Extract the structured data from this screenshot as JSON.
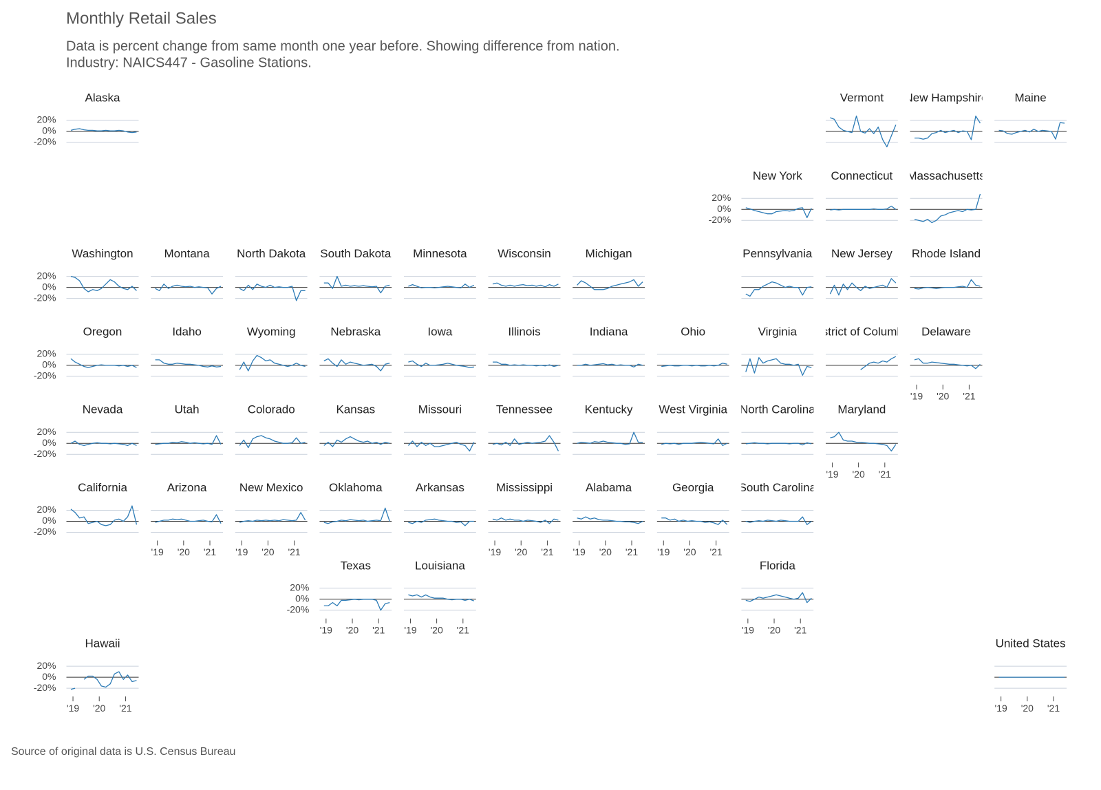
{
  "chart_data": {
    "type": "line",
    "title": "Monthly Retail Sales",
    "subtitle": [
      "Data is percent change from same month one year before. Showing difference from nation.",
      "Industry: NAICS447 - Gasoline Stations."
    ],
    "caption": "Source of original data is U.S. Census Bureau",
    "color": "#2c7bb6",
    "x": [
      2018.92,
      2019.08,
      2019.25,
      2019.42,
      2019.58,
      2019.75,
      2019.92,
      2020.08,
      2020.25,
      2020.42,
      2020.58,
      2020.75,
      2020.92,
      2021.08,
      2021.25,
      2021.42
    ],
    "xlim": [
      2018.75,
      2021.5
    ],
    "xticks": [
      {
        "value": 2019,
        "label": "'19"
      },
      {
        "value": 2020,
        "label": "'20"
      },
      {
        "value": 2021,
        "label": "'21"
      }
    ],
    "ylim": [
      -30,
      30
    ],
    "yticks": [
      {
        "value": 20,
        "label": "20%"
      },
      {
        "value": 0,
        "label": "0%"
      },
      {
        "value": -20,
        "label": "-20%"
      }
    ],
    "series": [
      {
        "name": "Alaska",
        "values": [
          2,
          4,
          5,
          3,
          2,
          2,
          1,
          1,
          2,
          1,
          1,
          2,
          1,
          -1,
          -2,
          -1
        ]
      },
      {
        "name": "Vermont",
        "values": [
          25,
          22,
          8,
          2,
          0,
          -2,
          28,
          0,
          -3,
          5,
          -4,
          8,
          -15,
          -28,
          -8,
          12
        ]
      },
      {
        "name": "New Hampshire",
        "values": [
          -12,
          -12,
          -14,
          -12,
          -4,
          -2,
          2,
          -2,
          0,
          2,
          -2,
          1,
          0,
          -15,
          28,
          15
        ]
      },
      {
        "name": "Maine",
        "values": [
          2,
          1,
          -4,
          -5,
          -2,
          0,
          2,
          -1,
          4,
          0,
          2,
          1,
          0,
          -14,
          16,
          15
        ]
      },
      {
        "name": "New York",
        "values": [
          3,
          1,
          -2,
          -4,
          -6,
          -8,
          -8,
          -4,
          -3,
          -2,
          -3,
          -2,
          2,
          3,
          -15,
          2
        ]
      },
      {
        "name": "Connecticut",
        "values": [
          -1,
          0,
          -1,
          0,
          0,
          0,
          0,
          0,
          0,
          0,
          1,
          0,
          0,
          1,
          6,
          0
        ]
      },
      {
        "name": "Massachusetts",
        "values": [
          -18,
          -20,
          -22,
          -18,
          -24,
          -20,
          -12,
          -10,
          -6,
          -4,
          -2,
          -4,
          0,
          -1,
          0,
          28
        ]
      },
      {
        "name": "Washington",
        "values": [
          20,
          18,
          12,
          -2,
          -8,
          -4,
          -6,
          -2,
          6,
          14,
          10,
          2,
          -2,
          -4,
          2,
          -6
        ]
      },
      {
        "name": "Montana",
        "values": [
          -2,
          -6,
          6,
          -2,
          2,
          4,
          2,
          1,
          2,
          0,
          1,
          0,
          -1,
          -12,
          -2,
          2
        ]
      },
      {
        "name": "North Dakota",
        "values": [
          -2,
          -6,
          4,
          -4,
          6,
          2,
          0,
          4,
          0,
          1,
          0,
          0,
          2,
          -24,
          -6,
          -6
        ]
      },
      {
        "name": "South Dakota",
        "values": [
          8,
          8,
          -2,
          20,
          2,
          4,
          2,
          3,
          2,
          3,
          2,
          1,
          2,
          -10,
          2,
          4
        ]
      },
      {
        "name": "Minnesota",
        "values": [
          2,
          5,
          2,
          -1,
          0,
          0,
          -1,
          0,
          1,
          2,
          1,
          0,
          -1,
          6,
          0,
          4
        ]
      },
      {
        "name": "Wisconsin",
        "values": [
          6,
          8,
          4,
          2,
          4,
          2,
          4,
          5,
          3,
          4,
          2,
          4,
          1,
          5,
          2,
          6
        ]
      },
      {
        "name": "Michigan",
        "values": [
          4,
          12,
          8,
          2,
          -4,
          -4,
          -4,
          -2,
          2,
          4,
          6,
          8,
          10,
          14,
          2,
          10
        ]
      },
      {
        "name": "Pennsylvania",
        "values": [
          -12,
          -16,
          -4,
          -4,
          2,
          6,
          10,
          8,
          4,
          0,
          2,
          0,
          0,
          -14,
          0,
          1
        ]
      },
      {
        "name": "New Jersey",
        "values": [
          -12,
          4,
          -14,
          6,
          -4,
          8,
          0,
          -6,
          2,
          -2,
          0,
          2,
          4,
          0,
          16,
          8
        ]
      },
      {
        "name": "Rhode Island",
        "values": [
          -2,
          -3,
          -1,
          0,
          -1,
          -2,
          -1,
          0,
          0,
          0,
          1,
          2,
          0,
          14,
          4,
          2
        ]
      },
      {
        "name": "Oregon",
        "values": [
          12,
          6,
          2,
          -2,
          -4,
          -2,
          0,
          1,
          0,
          0,
          0,
          -1,
          0,
          -2,
          0,
          -4
        ]
      },
      {
        "name": "Idaho",
        "values": [
          10,
          10,
          4,
          2,
          2,
          4,
          3,
          2,
          2,
          1,
          0,
          -2,
          -3,
          -1,
          -3,
          -2
        ]
      },
      {
        "name": "Wyoming",
        "values": [
          -8,
          6,
          -10,
          8,
          18,
          14,
          8,
          10,
          4,
          2,
          0,
          -2,
          0,
          4,
          0,
          -2
        ]
      },
      {
        "name": "Nebraska",
        "values": [
          8,
          12,
          4,
          -2,
          10,
          2,
          6,
          4,
          2,
          0,
          1,
          2,
          -2,
          -10,
          2,
          4
        ]
      },
      {
        "name": "Iowa",
        "values": [
          6,
          8,
          2,
          -2,
          4,
          0,
          0,
          1,
          2,
          4,
          2,
          0,
          -1,
          -2,
          -4,
          -3
        ]
      },
      {
        "name": "Illinois",
        "values": [
          6,
          6,
          2,
          2,
          0,
          1,
          0,
          1,
          0,
          0,
          -1,
          0,
          -1,
          1,
          -2,
          0
        ]
      },
      {
        "name": "Indiana",
        "values": [
          0,
          0,
          2,
          0,
          1,
          2,
          3,
          1,
          2,
          0,
          1,
          0,
          0,
          -3,
          2,
          0
        ]
      },
      {
        "name": "Ohio",
        "values": [
          -2,
          -1,
          0,
          -1,
          -1,
          0,
          0,
          -1,
          0,
          -1,
          -1,
          0,
          -1,
          0,
          4,
          2
        ]
      },
      {
        "name": "Virginia",
        "values": [
          -12,
          12,
          -14,
          14,
          4,
          8,
          10,
          12,
          4,
          2,
          2,
          0,
          2,
          -18,
          -2,
          -4
        ]
      },
      {
        "name": "District of Columbia",
        "values": [
          null,
          null,
          null,
          null,
          null,
          null,
          null,
          -8,
          -2,
          4,
          6,
          4,
          8,
          6,
          12,
          16
        ]
      },
      {
        "name": "Delaware",
        "values": [
          10,
          12,
          4,
          4,
          6,
          5,
          4,
          3,
          2,
          2,
          1,
          0,
          -1,
          0,
          -6,
          2
        ]
      },
      {
        "name": "Nevada",
        "values": [
          0,
          4,
          -2,
          -4,
          -2,
          0,
          1,
          0,
          0,
          -1,
          0,
          -1,
          -2,
          -4,
          0,
          -4
        ]
      },
      {
        "name": "Utah",
        "values": [
          -2,
          -1,
          0,
          0,
          2,
          1,
          3,
          2,
          0,
          1,
          0,
          -1,
          0,
          -2,
          14,
          -2
        ]
      },
      {
        "name": "Colorado",
        "values": [
          -4,
          6,
          -8,
          8,
          12,
          14,
          10,
          8,
          4,
          2,
          0,
          0,
          1,
          10,
          0,
          2
        ]
      },
      {
        "name": "Kansas",
        "values": [
          -4,
          2,
          -6,
          6,
          2,
          8,
          12,
          8,
          4,
          2,
          4,
          0,
          2,
          -2,
          2,
          0
        ]
      },
      {
        "name": "Missouri",
        "values": [
          -4,
          4,
          -6,
          2,
          -4,
          0,
          -6,
          -6,
          -4,
          -2,
          0,
          2,
          -2,
          -4,
          -14,
          2
        ]
      },
      {
        "name": "Tennessee",
        "values": [
          -2,
          0,
          -3,
          2,
          -4,
          8,
          -2,
          0,
          2,
          0,
          1,
          2,
          4,
          14,
          2,
          -14
        ]
      },
      {
        "name": "Kentucky",
        "values": [
          0,
          2,
          1,
          0,
          3,
          2,
          4,
          2,
          1,
          0,
          0,
          -2,
          -1,
          20,
          2,
          2
        ]
      },
      {
        "name": "West Virginia",
        "values": [
          -2,
          0,
          -1,
          0,
          -2,
          0,
          0,
          0,
          1,
          2,
          1,
          0,
          -1,
          8,
          -4,
          0
        ]
      },
      {
        "name": "North Carolina",
        "values": [
          -1,
          0,
          1,
          0,
          0,
          -1,
          0,
          0,
          0,
          0,
          -1,
          0,
          0,
          -3,
          1,
          -1
        ]
      },
      {
        "name": "Maryland",
        "values": [
          10,
          12,
          20,
          6,
          4,
          4,
          2,
          2,
          1,
          0,
          0,
          -1,
          -2,
          -4,
          -14,
          -2
        ]
      },
      {
        "name": "California",
        "values": [
          22,
          16,
          6,
          8,
          -4,
          -2,
          0,
          -6,
          -8,
          -6,
          2,
          4,
          0,
          8,
          28,
          -6
        ]
      },
      {
        "name": "Arizona",
        "values": [
          -2,
          0,
          2,
          2,
          4,
          3,
          4,
          2,
          0,
          0,
          1,
          2,
          0,
          -1,
          12,
          -4
        ]
      },
      {
        "name": "New Mexico",
        "values": [
          -2,
          0,
          1,
          0,
          2,
          1,
          2,
          1,
          2,
          1,
          3,
          2,
          1,
          2,
          16,
          2
        ]
      },
      {
        "name": "Oklahoma",
        "values": [
          -2,
          -4,
          -1,
          0,
          2,
          1,
          3,
          2,
          1,
          2,
          0,
          1,
          2,
          1,
          24,
          0
        ]
      },
      {
        "name": "Arkansas",
        "values": [
          -2,
          -4,
          0,
          -2,
          2,
          3,
          4,
          2,
          1,
          0,
          0,
          -2,
          -1,
          -8,
          0,
          0
        ]
      },
      {
        "name": "Mississippi",
        "values": [
          4,
          2,
          6,
          2,
          4,
          2,
          2,
          0,
          2,
          1,
          0,
          -2,
          2,
          -4,
          4,
          2
        ]
      },
      {
        "name": "Alabama",
        "values": [
          6,
          4,
          8,
          4,
          6,
          3,
          2,
          2,
          1,
          0,
          0,
          -1,
          -1,
          -2,
          -4,
          0
        ]
      },
      {
        "name": "Georgia",
        "values": [
          6,
          6,
          2,
          4,
          0,
          2,
          0,
          1,
          0,
          0,
          -2,
          -1,
          -3,
          -6,
          2,
          -6
        ]
      },
      {
        "name": "South Carolina",
        "values": [
          0,
          -2,
          0,
          1,
          0,
          2,
          1,
          0,
          2,
          1,
          0,
          0,
          0,
          8,
          -6,
          0
        ]
      },
      {
        "name": "Texas",
        "values": [
          -12,
          -12,
          -6,
          -12,
          -2,
          -2,
          -1,
          0,
          -1,
          0,
          0,
          0,
          -2,
          -20,
          -8,
          -6
        ]
      },
      {
        "name": "Louisiana",
        "values": [
          8,
          6,
          8,
          4,
          8,
          4,
          2,
          2,
          2,
          0,
          -1,
          0,
          0,
          -2,
          0,
          -3
        ]
      },
      {
        "name": "Florida",
        "values": [
          -2,
          -4,
          0,
          4,
          2,
          4,
          6,
          8,
          6,
          4,
          2,
          0,
          2,
          12,
          -6,
          2
        ]
      },
      {
        "name": "Hawaii",
        "values": [
          -22,
          -20,
          null,
          -4,
          2,
          2,
          -4,
          -16,
          -18,
          -12,
          6,
          10,
          -4,
          4,
          -8,
          -6
        ]
      },
      {
        "name": "United States",
        "values": [
          0,
          0,
          0,
          0,
          0,
          0,
          0,
          0,
          0,
          0,
          0,
          0,
          0,
          0,
          0,
          0
        ]
      }
    ]
  }
}
